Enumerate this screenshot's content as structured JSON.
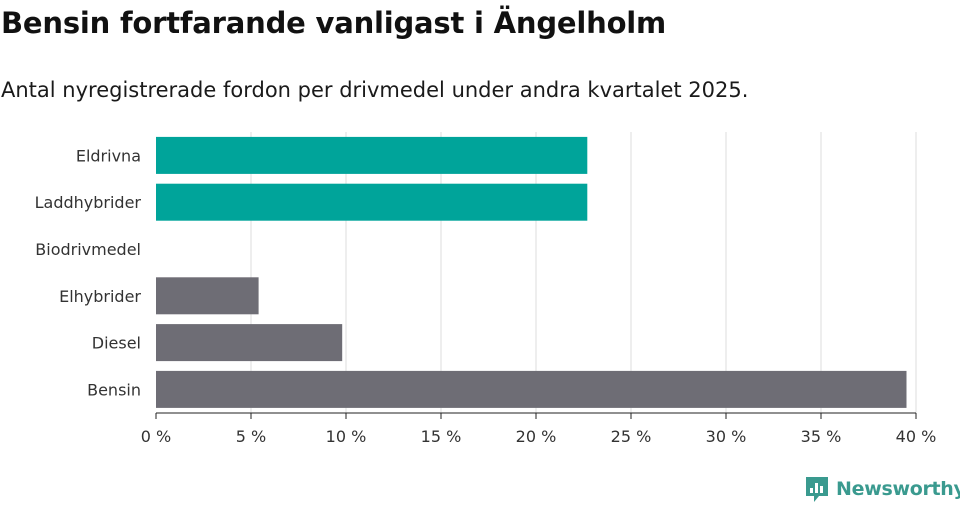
{
  "header": {
    "title": "Bensin fortfarande vanligast i Ängelholm",
    "subtitle": "Antal nyregistrerade fordon per drivmedel under andra kvartalet 2025."
  },
  "brand": {
    "name": "Newsworthy",
    "color": "#3a9a8f"
  },
  "colors": {
    "highlight": "#00a49a",
    "default": "#6e6d75",
    "grid": "#dddddd",
    "axis": "#222222"
  },
  "chart_data": {
    "type": "bar",
    "orientation": "horizontal",
    "categories": [
      "Eldrivna",
      "Laddhybrider",
      "Biodrivmedel",
      "Elhybrider",
      "Diesel",
      "Bensin"
    ],
    "values": [
      22.7,
      22.7,
      0,
      5.4,
      9.8,
      39.5
    ],
    "highlight": [
      true,
      true,
      false,
      false,
      false,
      false
    ],
    "xlim": [
      0,
      40
    ],
    "xticks": [
      0,
      5,
      10,
      15,
      20,
      25,
      30,
      35,
      40
    ],
    "xtick_labels": [
      "0 %",
      "5 %",
      "10 %",
      "15 %",
      "20 %",
      "25 %",
      "30 %",
      "35 %",
      "40 %"
    ],
    "grid": true,
    "title": "Bensin fortfarande vanligast i Ängelholm",
    "subtitle": "Antal nyregistrerade fordon per drivmedel under andra kvartalet 2025.",
    "xlabel": "",
    "ylabel": ""
  }
}
